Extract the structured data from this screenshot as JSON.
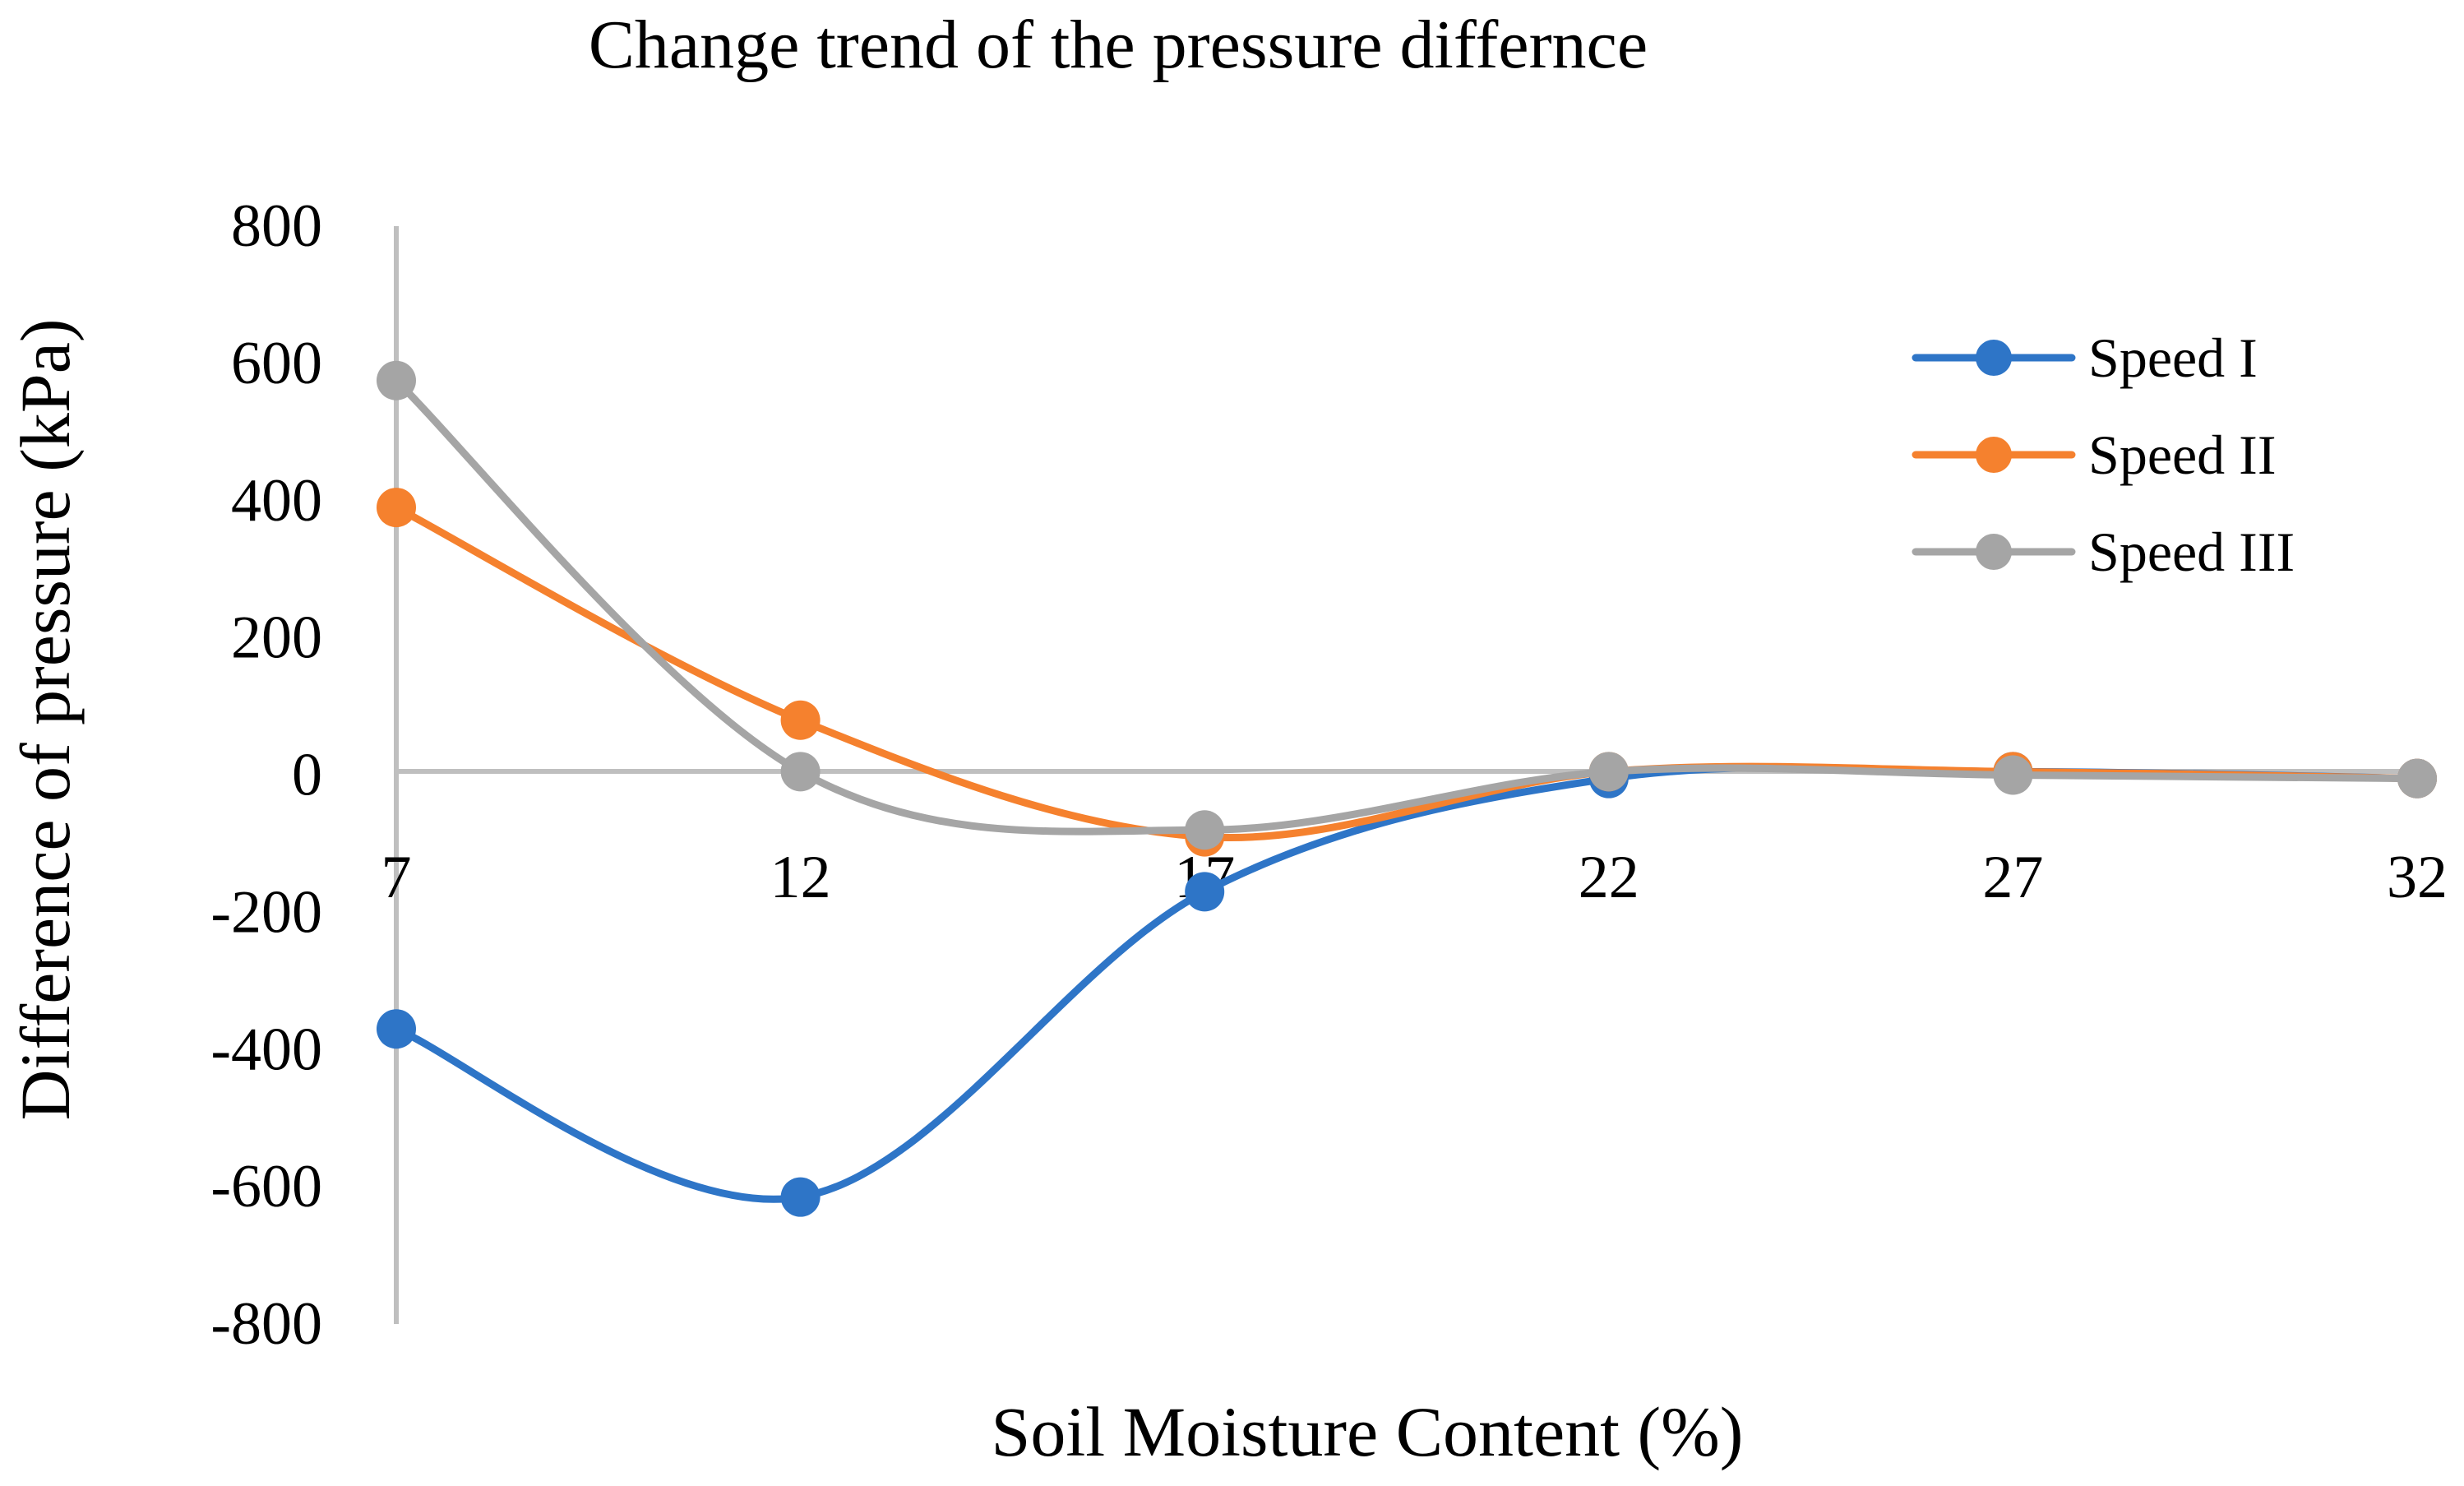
{
  "chart_data": {
    "type": "line",
    "title": "Change trend of the pressure differnce",
    "xlabel": "Soil Moisture Content (%)",
    "ylabel": "Difference of pressure (kPa)",
    "categories": [
      "7",
      "12",
      "17",
      "22",
      "27",
      "32"
    ],
    "x": [
      7,
      12,
      17,
      22,
      27,
      32
    ],
    "ylim": [
      -800,
      800
    ],
    "yticks": [
      800,
      600,
      400,
      200,
      0,
      -200,
      -400,
      -600,
      -800
    ],
    "ytick_labels": [
      "800",
      "600",
      "400",
      "200",
      "0",
      "-200",
      "-400",
      "-600",
      "-800"
    ],
    "grid": false,
    "legend_position": "top-right",
    "smooth": true,
    "series": [
      {
        "name": "Speed I",
        "color": "#2e75c7",
        "values": [
          -370,
          -615,
          -170,
          -5,
          5,
          -5
        ]
      },
      {
        "name": "Speed II",
        "color": "#f5812e",
        "values": [
          390,
          80,
          -90,
          5,
          5,
          -5
        ]
      },
      {
        "name": "Speed III",
        "color": "#a5a5a5",
        "values": [
          575,
          5,
          -80,
          5,
          0,
          -5
        ]
      }
    ]
  }
}
